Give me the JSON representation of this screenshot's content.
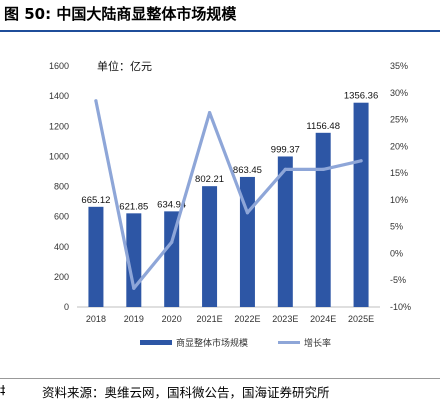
{
  "figure": {
    "title": "图 50:  中国大陆商显整体市场规模",
    "source": "资料来源：奥维云网，国科微公告，国海证券研究所",
    "edge_text": "‡"
  },
  "colors": {
    "bar": "#2d56a5",
    "line": "#8ea6d8"
  },
  "chart_data": {
    "type": "bar",
    "title": "中国大陆商显整体市场规模",
    "unit_label": "单位：亿元",
    "categories": [
      "2018",
      "2019",
      "2020",
      "2021E",
      "2022E",
      "2023E",
      "2024E",
      "2025E"
    ],
    "series": [
      {
        "name": "商显整体市场规模",
        "type": "bar",
        "axis": "left",
        "values": [
          665.12,
          621.85,
          634.94,
          802.21,
          863.45,
          999.37,
          1156.48,
          1356.36
        ],
        "labels": [
          "665.12",
          "621.85",
          "634.94",
          "802.21",
          "863.45",
          "999.37",
          "1156.48",
          "1356.36"
        ]
      },
      {
        "name": "增长率",
        "type": "line",
        "axis": "right",
        "values": [
          28.5,
          -6.5,
          2.1,
          26.3,
          7.6,
          15.7,
          15.7,
          17.3
        ]
      }
    ],
    "ylim_left": [
      0,
      1600
    ],
    "yticks_left": [
      "0",
      "200",
      "400",
      "600",
      "800",
      "1000",
      "1200",
      "1400",
      "1600"
    ],
    "ylim_right": [
      -10,
      35
    ],
    "yticks_right": [
      "-10%",
      "-5%",
      "0%",
      "5%",
      "10%",
      "15%",
      "20%",
      "25%",
      "30%",
      "35%"
    ],
    "grid": false,
    "legend_position": "bottom"
  }
}
